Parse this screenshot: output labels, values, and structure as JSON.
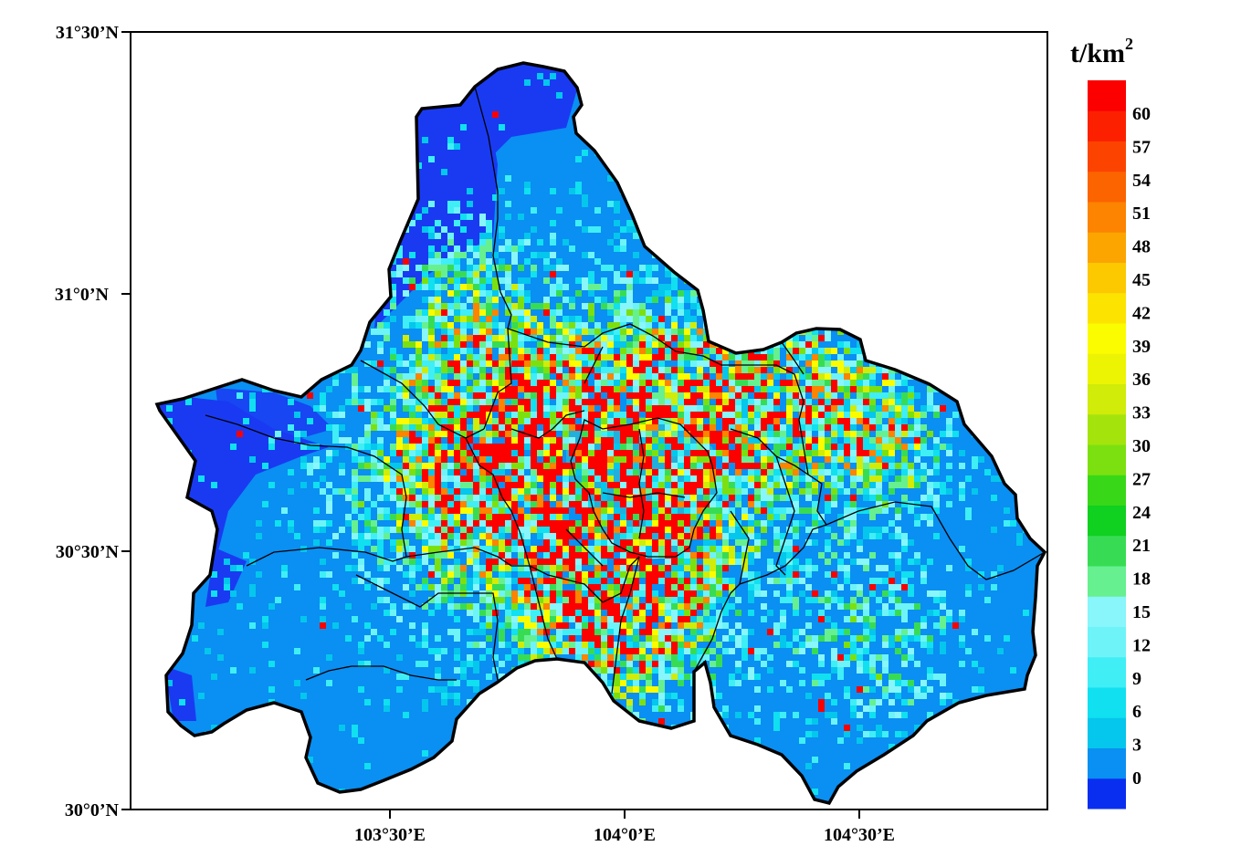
{
  "map": {
    "lat_labels": [
      "31°30’N",
      "31°0’N",
      "30°30’N",
      "30°0’N"
    ],
    "lon_labels": [
      "103°30’E",
      "104°0’E",
      "104°30’E"
    ]
  },
  "colorbar": {
    "unit_base": "t/km",
    "unit_sup": "2",
    "tick_labels": [
      "0",
      "3",
      "6",
      "9",
      "12",
      "15",
      "18",
      "21",
      "24",
      "27",
      "30",
      "33",
      "36",
      "39",
      "42",
      "45",
      "48",
      "51",
      "54",
      "57",
      "60"
    ],
    "colors": [
      "#0a2ef0",
      "#0a8ff2",
      "#05c6ec",
      "#10e0f0",
      "#40eef6",
      "#6ef4f8",
      "#88f6fa",
      "#66f090",
      "#38dc54",
      "#10d020",
      "#38d818",
      "#7ce010",
      "#a4e40c",
      "#d0ec08",
      "#ecf404",
      "#fcfc00",
      "#fce400",
      "#fcc800",
      "#fca400",
      "#fc8400",
      "#fc6400",
      "#fc4400",
      "#fc2000",
      "#fc0000"
    ]
  },
  "chart_data": {
    "type": "heatmap",
    "lat_range": [
      "30°0’N",
      "31°30’N"
    ],
    "lon_ticks": [
      "103°30’E",
      "104°0’E",
      "104°30’E"
    ],
    "legend_placement": "right",
    "unit": "t/km2",
    "scale_min": 0,
    "scale_max": 60,
    "scale_step": 3
  }
}
